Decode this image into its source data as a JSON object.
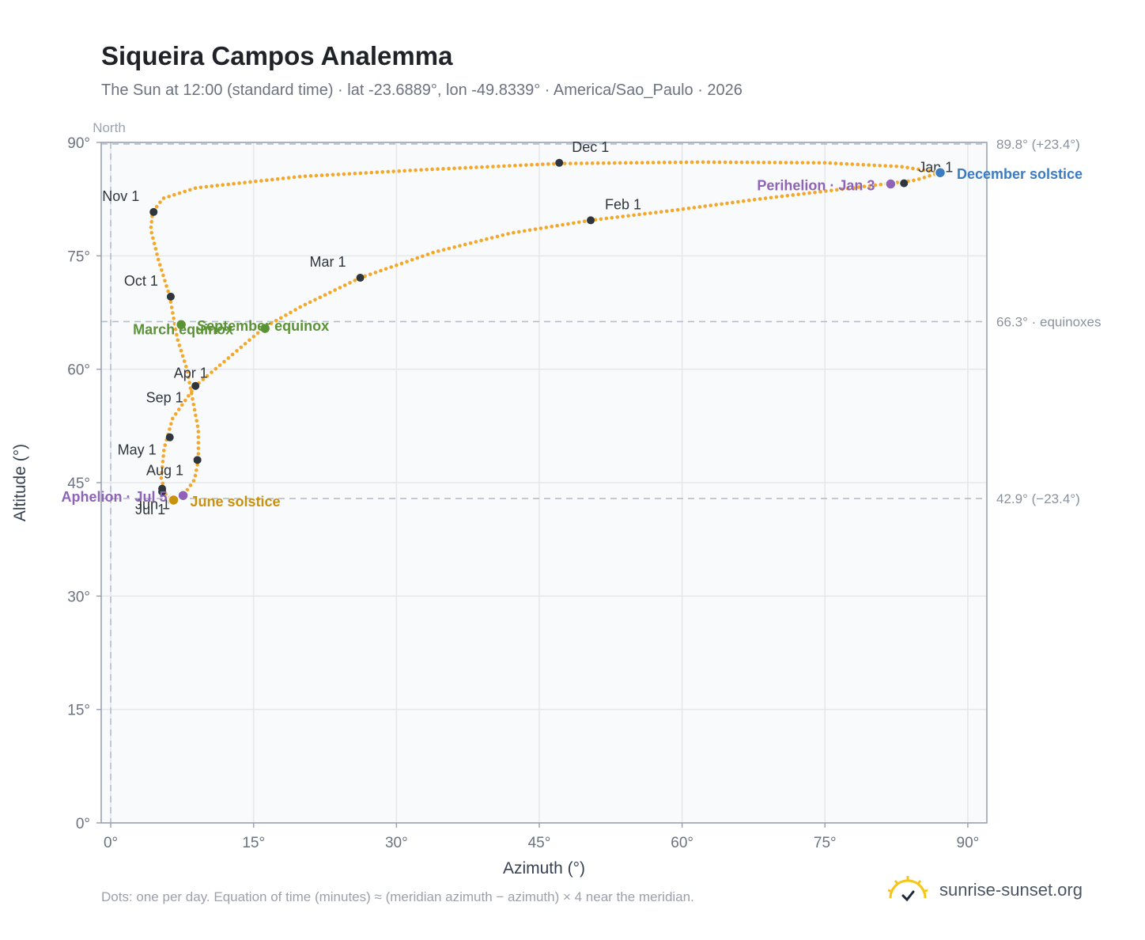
{
  "title": "Siqueira Campos Analemma",
  "subtitle": "The Sun at 12:00 (standard time) · lat -23.6889°, lon -49.8339° · America/Sao_Paulo · 2026",
  "footnote": "Dots: one per day. Equation of time (minutes) ≈ (meridian azimuth − azimuth) × 4 near the meridian.",
  "brand": "sunrise-sunset.org",
  "colors": {
    "path": "#f4a82a",
    "month_marker": "#2f353d",
    "equinox": "#5a9234",
    "june_solstice": "#c8920f",
    "december_solstice": "#3b7bbf",
    "apsis": "#8e63b8",
    "grid": "#e5e7eb",
    "plot_bg": "#f8fafc",
    "axis": "#9aa3b2"
  },
  "chart_data": {
    "type": "scatter",
    "title": "Siqueira Campos Analemma",
    "xlabel": "Azimuth (°)",
    "ylabel": "Altitude (°)",
    "xlim": [
      -1,
      92
    ],
    "ylim": [
      0,
      90
    ],
    "xticks": [
      0,
      15,
      30,
      45,
      60,
      75,
      90
    ],
    "yticks": [
      0,
      15,
      30,
      45,
      60,
      75,
      90
    ],
    "xtick_labels": [
      "0°",
      "15°",
      "30°",
      "45°",
      "60°",
      "75°",
      "90°"
    ],
    "ytick_labels": [
      "0°",
      "15°",
      "30°",
      "45°",
      "60°",
      "75°",
      "90°"
    ],
    "direction_label": "North",
    "grid": true,
    "reference_lines": [
      {
        "y": 89.8,
        "label": "89.8° (+23.4°)"
      },
      {
        "y": 66.3,
        "label": "66.3° · equinoxes"
      },
      {
        "y": 42.9,
        "label": "42.9° (−23.4°)"
      },
      {
        "x": 0,
        "label": ""
      }
    ],
    "path_keypoints": [
      {
        "az": 87.1,
        "alt": 86.0
      },
      {
        "az": 84.5,
        "alt": 85.0
      },
      {
        "az": 78.0,
        "alt": 84.0
      },
      {
        "az": 68.0,
        "alt": 82.5
      },
      {
        "az": 59.0,
        "alt": 81.0
      },
      {
        "az": 50.4,
        "alt": 79.7
      },
      {
        "az": 42.0,
        "alt": 78.0
      },
      {
        "az": 34.0,
        "alt": 75.5
      },
      {
        "az": 26.2,
        "alt": 72.1
      },
      {
        "az": 20.0,
        "alt": 68.3
      },
      {
        "az": 16.2,
        "alt": 65.6
      },
      {
        "az": 11.9,
        "alt": 61.0
      },
      {
        "az": 8.9,
        "alt": 57.8
      },
      {
        "az": 6.5,
        "alt": 53.5
      },
      {
        "az": 5.6,
        "alt": 49.5
      },
      {
        "az": 5.3,
        "alt": 45.6
      },
      {
        "az": 5.8,
        "alt": 43.4
      },
      {
        "az": 6.6,
        "alt": 42.7
      },
      {
        "az": 7.6,
        "alt": 43.3
      },
      {
        "az": 8.8,
        "alt": 45.4
      },
      {
        "az": 9.2,
        "alt": 48.0
      },
      {
        "az": 9.2,
        "alt": 52.0
      },
      {
        "az": 8.6,
        "alt": 56.0
      },
      {
        "az": 8.0,
        "alt": 60.0
      },
      {
        "az": 7.0,
        "alt": 64.0
      },
      {
        "az": 6.2,
        "alt": 69.6
      },
      {
        "az": 5.0,
        "alt": 74.5
      },
      {
        "az": 4.2,
        "alt": 78.5
      },
      {
        "az": 4.4,
        "alt": 80.8
      },
      {
        "az": 5.5,
        "alt": 82.6
      },
      {
        "az": 9.0,
        "alt": 84.0
      },
      {
        "az": 20.0,
        "alt": 85.5
      },
      {
        "az": 33.0,
        "alt": 86.4
      },
      {
        "az": 47.0,
        "alt": 87.2
      },
      {
        "az": 62.0,
        "alt": 87.4
      },
      {
        "az": 75.0,
        "alt": 87.3
      },
      {
        "az": 83.0,
        "alt": 86.8
      },
      {
        "az": 87.1,
        "alt": 86.0
      }
    ],
    "month_markers": [
      {
        "label": "Jan 1",
        "az": 83.3,
        "alt": 84.6,
        "anchor": "start",
        "dx": 18,
        "dy": -14
      },
      {
        "label": "Feb 1",
        "az": 50.4,
        "alt": 79.7,
        "anchor": "start",
        "dx": 18,
        "dy": -14
      },
      {
        "label": "Mar 1",
        "az": 26.2,
        "alt": 72.1,
        "anchor": "end",
        "dx": -18,
        "dy": -14
      },
      {
        "label": "Apr 1",
        "az": 8.9,
        "alt": 57.8,
        "anchor": "middle",
        "dx": -6,
        "dy": -10
      },
      {
        "label": "May 1",
        "az": 9.1,
        "alt": 48.0,
        "anchor": "end",
        "dx": -52,
        "dy": -7
      },
      {
        "label": "Jun 1",
        "az": 5.4,
        "alt": 43.8,
        "anchor": "end",
        "dx": 10,
        "dy": 22
      },
      {
        "label": "Jul 1",
        "az": 6.4,
        "alt": 42.6,
        "anchor": "end",
        "dx": -8,
        "dy": 17
      },
      {
        "label": "Aug 1",
        "az": 5.4,
        "alt": 44.2,
        "anchor": "end",
        "dx": 27,
        "dy": -17
      },
      {
        "label": "Sep 1",
        "az": 6.2,
        "alt": 51.0,
        "anchor": "end",
        "dx": 17,
        "dy": -44
      },
      {
        "label": "Oct 1",
        "az": 6.3,
        "alt": 69.6,
        "anchor": "end",
        "dx": -16,
        "dy": -14
      },
      {
        "label": "Nov 1",
        "az": 4.5,
        "alt": 80.8,
        "anchor": "end",
        "dx": -18,
        "dy": -14
      },
      {
        "label": "Dec 1",
        "az": 47.1,
        "alt": 87.3,
        "anchor": "start",
        "dx": 16,
        "dy": -14
      }
    ],
    "events": [
      {
        "label": "December solstice",
        "az": 87.1,
        "alt": 86.0,
        "kind": "december_solstice",
        "anchor": "start",
        "dx": 21,
        "dy": 8
      },
      {
        "label": "Perihelion · Jan 3",
        "az": 81.9,
        "alt": 84.5,
        "kind": "apsis",
        "anchor": "end",
        "dx": -20,
        "dy": 8
      },
      {
        "label": "March equinox",
        "az": 7.4,
        "alt": 65.9,
        "kind": "equinox",
        "anchor": "start",
        "dx": -61,
        "dy": 12
      },
      {
        "label": "September equinox",
        "az": 16.2,
        "alt": 65.4,
        "kind": "equinox",
        "anchor": "start",
        "dx": -86,
        "dy": 3
      },
      {
        "label": "June solstice",
        "az": 6.6,
        "alt": 42.7,
        "kind": "june_solstice",
        "anchor": "start",
        "dx": 21,
        "dy": 8
      },
      {
        "label": "Aphelion · Jul 5",
        "az": 7.6,
        "alt": 43.3,
        "kind": "apsis",
        "anchor": "end",
        "dx": -20,
        "dy": 8
      }
    ]
  }
}
